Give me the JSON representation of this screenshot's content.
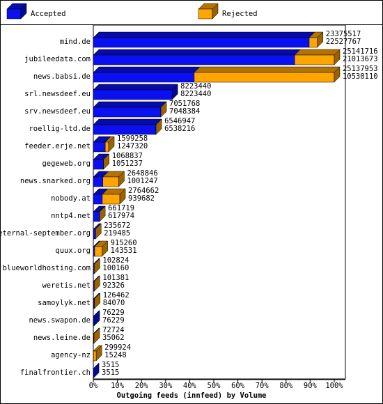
{
  "chart_data": {
    "type": "bar3d",
    "title": "Outgoing feeds (innfeed) by Volume",
    "legend": [
      {
        "name": "Accepted",
        "color": "#0a10f0"
      },
      {
        "name": "Rejected",
        "color": "#ffa500"
      }
    ],
    "categories": [
      "mind.de",
      "jubileedata.com",
      "news.babsi.de",
      "srl.newsdeef.eu",
      "srv.newsdeef.eu",
      "roellig-ltd.de",
      "feeder.erje.net",
      "gegeweb.org",
      "news.snarked.org",
      "nobody.at",
      "nntp4.net",
      "eternal-september.org",
      "quux.org",
      "blueworldhosting.com",
      "weretis.net",
      "samoylyk.net",
      "news.swapon.de",
      "news.leine.de",
      "agency-nz",
      "finalfrontier.ch"
    ],
    "offered": [
      23375517,
      25141716,
      25137953,
      8223440,
      7051768,
      6546947,
      1599258,
      1068837,
      2648846,
      2764662,
      661719,
      235672,
      915260,
      102824,
      101381,
      126462,
      76229,
      72724,
      299924,
      3515
    ],
    "accepted": [
      22527767,
      21013673,
      10530110,
      8223440,
      7048384,
      6538216,
      1247320,
      1051237,
      1001247,
      939682,
      617974,
      219485,
      143531,
      100160,
      92326,
      84070,
      76229,
      35062,
      15248,
      3515
    ],
    "xlim": [
      0,
      25141716
    ],
    "xticks": [
      {
        "value": 0,
        "label": "0%"
      },
      {
        "value": 2514171.6,
        "label": "10%"
      },
      {
        "value": 5028343.2,
        "label": "20%"
      },
      {
        "value": 7542514.8,
        "label": "30%"
      },
      {
        "value": 10056686.4,
        "label": "40%"
      },
      {
        "value": 12570858,
        "label": "50%"
      },
      {
        "value": 15085029.6,
        "label": "60%"
      },
      {
        "value": 17599201.2,
        "label": "70%"
      },
      {
        "value": 20113372.8,
        "label": "80%"
      },
      {
        "value": 22627544.4,
        "label": "90%"
      },
      {
        "value": 25141716,
        "label": "100%"
      }
    ]
  }
}
